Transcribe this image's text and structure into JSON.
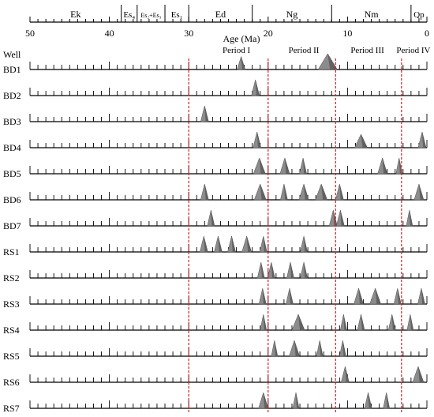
{
  "chart_data": {
    "type": "other",
    "xlabel": "Age (Ma)",
    "row_header": "Well",
    "x_reversed": true,
    "xlim": [
      0,
      50
    ],
    "major_ticks": [
      50,
      40,
      30,
      20,
      10,
      0
    ],
    "minor_step": 1,
    "formations": [
      {
        "label": "Ek",
        "start": 50,
        "end": 38.5
      },
      {
        "label": "Es₄",
        "start": 38.5,
        "end": 36.5
      },
      {
        "label": "Es₂+Es₃",
        "start": 36.5,
        "end": 33
      },
      {
        "label": "Es₁",
        "start": 33,
        "end": 30
      },
      {
        "label": "Ed",
        "start": 30,
        "end": 22
      },
      {
        "label": "Ng",
        "start": 22,
        "end": 12
      },
      {
        "label": "Nm",
        "start": 12,
        "end": 2
      },
      {
        "label": "Qp",
        "start": 2,
        "end": 0
      }
    ],
    "periods": [
      {
        "label": "Period I",
        "center": 24
      },
      {
        "label": "Period II",
        "center": 15.5
      },
      {
        "label": "Period III",
        "center": 7.5
      },
      {
        "label": "Period IV",
        "center": 1.7
      }
    ],
    "period_boundaries": [
      30,
      20,
      11.5,
      3.2
    ],
    "rows": [
      {
        "well": "BD1",
        "peaks": [
          {
            "age": 23.4,
            "width": 0.5,
            "height": 0.82
          },
          {
            "age": 12.5,
            "width": 1.2,
            "height": 1.0
          }
        ]
      },
      {
        "well": "BD2",
        "peaks": [
          {
            "age": 21.6,
            "width": 0.5,
            "height": 1.0
          }
        ]
      },
      {
        "well": "BD3",
        "peaks": [
          {
            "age": 28,
            "width": 0.5,
            "height": 1.0
          }
        ]
      },
      {
        "well": "BD4",
        "peaks": [
          {
            "age": 21.4,
            "width": 0.5,
            "height": 1.0
          },
          {
            "age": 8.3,
            "width": 0.8,
            "height": 0.85
          },
          {
            "age": 0.6,
            "width": 0.5,
            "height": 1.0
          }
        ]
      },
      {
        "well": "BD5",
        "peaks": [
          {
            "age": 21.1,
            "width": 0.75,
            "height": 1.0
          },
          {
            "age": 17.9,
            "width": 0.6,
            "height": 1.0
          },
          {
            "age": 15.6,
            "width": 0.45,
            "height": 1.0
          },
          {
            "age": 5.6,
            "width": 0.6,
            "height": 1.0
          },
          {
            "age": 3.5,
            "width": 0.4,
            "height": 1.0
          }
        ]
      },
      {
        "well": "BD6",
        "peaks": [
          {
            "age": 28,
            "width": 0.5,
            "height": 1.0
          },
          {
            "age": 21,
            "width": 0.75,
            "height": 1.0
          },
          {
            "age": 18,
            "width": 0.45,
            "height": 1.0
          },
          {
            "age": 15.5,
            "width": 0.6,
            "height": 1.0
          },
          {
            "age": 13.3,
            "width": 0.75,
            "height": 1.0
          },
          {
            "age": 11,
            "width": 0.5,
            "height": 1.0
          },
          {
            "age": 1,
            "width": 0.6,
            "height": 1.0
          }
        ]
      },
      {
        "well": "BD7",
        "peaks": [
          {
            "age": 27.2,
            "width": 0.45,
            "height": 1.0
          },
          {
            "age": 11.8,
            "width": 0.5,
            "height": 1.0
          },
          {
            "age": 10.9,
            "width": 0.5,
            "height": 1.0
          },
          {
            "age": 2.2,
            "width": 0.4,
            "height": 1.0
          }
        ]
      },
      {
        "well": "RS1",
        "peaks": [
          {
            "age": 28.1,
            "width": 0.5,
            "height": 1.0
          },
          {
            "age": 26.3,
            "width": 0.5,
            "height": 1.0
          },
          {
            "age": 24.6,
            "width": 0.5,
            "height": 1.0
          },
          {
            "age": 22.7,
            "width": 0.6,
            "height": 1.0
          },
          {
            "age": 20.6,
            "width": 0.45,
            "height": 1.0
          },
          {
            "age": 15.5,
            "width": 0.45,
            "height": 1.0
          }
        ]
      },
      {
        "well": "RS2",
        "peaks": [
          {
            "age": 20.9,
            "width": 0.45,
            "height": 1.0
          },
          {
            "age": 19.6,
            "width": 0.45,
            "height": 1.0
          },
          {
            "age": 17.2,
            "width": 0.45,
            "height": 1.0
          },
          {
            "age": 15.5,
            "width": 0.45,
            "height": 1.0
          }
        ]
      },
      {
        "well": "RS3",
        "peaks": [
          {
            "age": 20.7,
            "width": 0.45,
            "height": 1.0
          },
          {
            "age": 17.3,
            "width": 0.45,
            "height": 1.0
          },
          {
            "age": 8.6,
            "width": 0.6,
            "height": 1.0
          },
          {
            "age": 6.5,
            "width": 0.7,
            "height": 1.0
          },
          {
            "age": 3.7,
            "width": 0.45,
            "height": 1.0
          },
          {
            "age": 0.7,
            "width": 0.45,
            "height": 1.0
          }
        ]
      },
      {
        "well": "RS4",
        "peaks": [
          {
            "age": 20.6,
            "width": 0.4,
            "height": 1.0
          },
          {
            "age": 16.2,
            "width": 0.8,
            "height": 1.0
          },
          {
            "age": 10.5,
            "width": 0.4,
            "height": 1.0
          },
          {
            "age": 8.3,
            "width": 0.45,
            "height": 1.0
          },
          {
            "age": 4.4,
            "width": 0.45,
            "height": 1.0
          },
          {
            "age": 2.1,
            "width": 0.4,
            "height": 1.0
          }
        ]
      },
      {
        "well": "RS5",
        "peaks": [
          {
            "age": 19.2,
            "width": 0.4,
            "height": 1.0
          },
          {
            "age": 16.7,
            "width": 0.65,
            "height": 1.0
          },
          {
            "age": 13.5,
            "width": 0.4,
            "height": 1.0
          },
          {
            "age": 10.6,
            "width": 0.4,
            "height": 1.0
          }
        ]
      },
      {
        "well": "RS6",
        "peaks": [
          {
            "age": 10.3,
            "width": 0.5,
            "height": 1.0
          },
          {
            "age": 1.1,
            "width": 0.7,
            "height": 1.0
          }
        ]
      },
      {
        "well": "RS7",
        "peaks": [
          {
            "age": 20.6,
            "width": 0.6,
            "height": 1.0
          },
          {
            "age": 16.5,
            "width": 0.4,
            "height": 1.0
          },
          {
            "age": 7.4,
            "width": 0.45,
            "height": 1.0
          },
          {
            "age": 5.1,
            "width": 0.4,
            "height": 1.0
          }
        ]
      }
    ],
    "colors": {
      "peak_fill": "#8c8c8c",
      "peak_shade": "#505050",
      "axis": "#000000",
      "boundary": "#e31a1c"
    }
  }
}
